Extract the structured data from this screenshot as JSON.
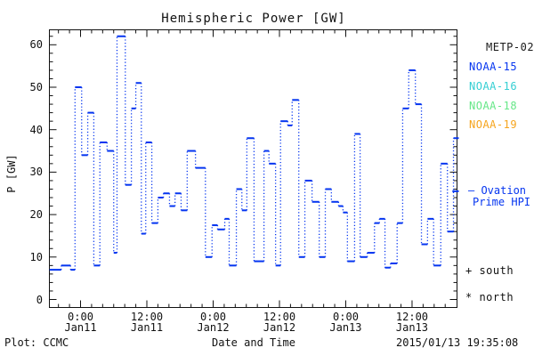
{
  "title": "Hemispheric Power [GW]",
  "y_axis": {
    "label": "P [GW]",
    "tick_values": [
      0,
      10,
      20,
      30,
      40,
      50,
      60
    ],
    "minor_step_gw": 2,
    "range_gw": [
      -1.75,
      63.7
    ]
  },
  "x_axis": {
    "label": "Date and Time",
    "major_ticks": [
      {
        "time": "0:00",
        "date": "Jan11",
        "hours": 0
      },
      {
        "time": "12:00",
        "date": "Jan11",
        "hours": 12
      },
      {
        "time": "0:00",
        "date": "Jan12",
        "hours": 24
      },
      {
        "time": "12:00",
        "date": "Jan12",
        "hours": 36
      },
      {
        "time": "0:00",
        "date": "Jan13",
        "hours": 48
      },
      {
        "time": "12:00",
        "date": "Jan13",
        "hours": 60
      }
    ],
    "minor_step_hours": 2,
    "range_hours": [
      -5.6,
      68.6
    ]
  },
  "legend": {
    "satellites": [
      {
        "name": "METP-02",
        "color": "#1a1a1a"
      },
      {
        "name": "NOAA-15",
        "color": "#0535f0"
      },
      {
        "name": "NOAA-16",
        "color": "#35cfd3"
      },
      {
        "name": "NOAA-18",
        "color": "#66e788"
      },
      {
        "name": "NOAA-19",
        "color": "#f6a51e"
      }
    ],
    "line": {
      "label_line1": "— Ovation",
      "label_line2": "Prime HPI",
      "color": "#0535f0"
    },
    "markers": {
      "south": "+ south",
      "north": "* north"
    }
  },
  "footer": {
    "left": "Plot: CCMC",
    "center_label": "Date and Time",
    "timestamp": "2015/01/13 19:35:08"
  },
  "chart_data": {
    "type": "line",
    "title": "Hemispheric Power [GW]",
    "xlabel": "Date and Time",
    "ylabel": "P [GW]",
    "series_name": "Ovation Prime HPI",
    "line_color": "#0535f0",
    "style": "horizontal plateau segments joined by dotted vertical connectors",
    "x_unit": "hours since 2015-01-11 00:00 UT",
    "xlim": [
      -5.6,
      68.6
    ],
    "ylim": [
      -1.75,
      63.7
    ],
    "segments_h_gw": [
      [
        -5.6,
        -3.5,
        7
      ],
      [
        -3.5,
        -1.8,
        8
      ],
      [
        -1.8,
        -1.0,
        7
      ],
      [
        -1.0,
        0.2,
        50
      ],
      [
        0.2,
        1.3,
        34
      ],
      [
        1.3,
        2.4,
        44
      ],
      [
        2.4,
        3.5,
        8
      ],
      [
        3.5,
        4.8,
        37
      ],
      [
        4.8,
        6.0,
        35
      ],
      [
        6.0,
        6.6,
        11
      ],
      [
        6.6,
        8.1,
        62
      ],
      [
        8.1,
        9.2,
        27
      ],
      [
        9.2,
        10.0,
        45
      ],
      [
        10.0,
        11.0,
        51
      ],
      [
        11.0,
        11.8,
        15.5
      ],
      [
        11.8,
        12.9,
        37
      ],
      [
        12.9,
        14.0,
        18
      ],
      [
        14.0,
        15.0,
        24
      ],
      [
        15.0,
        16.1,
        25
      ],
      [
        16.1,
        17.1,
        22
      ],
      [
        17.1,
        18.2,
        25
      ],
      [
        18.2,
        19.3,
        21
      ],
      [
        19.3,
        20.8,
        35
      ],
      [
        20.8,
        22.6,
        31
      ],
      [
        22.6,
        23.8,
        10
      ],
      [
        23.8,
        24.8,
        17.5
      ],
      [
        24.8,
        26.1,
        16.5
      ],
      [
        26.1,
        26.9,
        19
      ],
      [
        26.9,
        28.2,
        8
      ],
      [
        28.2,
        29.2,
        26
      ],
      [
        29.2,
        30.1,
        21
      ],
      [
        30.1,
        31.4,
        38
      ],
      [
        31.4,
        33.2,
        9
      ],
      [
        33.2,
        34.1,
        35
      ],
      [
        34.1,
        35.3,
        32
      ],
      [
        35.3,
        36.2,
        8
      ],
      [
        36.2,
        37.5,
        42
      ],
      [
        37.5,
        38.3,
        41
      ],
      [
        38.3,
        39.5,
        47
      ],
      [
        39.5,
        40.6,
        10
      ],
      [
        40.6,
        41.9,
        28
      ],
      [
        41.9,
        43.2,
        23
      ],
      [
        43.2,
        44.3,
        10
      ],
      [
        44.3,
        45.4,
        26
      ],
      [
        45.4,
        46.7,
        23
      ],
      [
        46.7,
        47.5,
        22
      ],
      [
        47.5,
        48.3,
        20.5
      ],
      [
        48.3,
        49.6,
        9
      ],
      [
        49.6,
        50.6,
        39
      ],
      [
        50.6,
        51.9,
        10
      ],
      [
        51.9,
        53.2,
        11
      ],
      [
        53.2,
        54.1,
        18
      ],
      [
        54.1,
        55.1,
        19
      ],
      [
        55.1,
        56.1,
        7.5
      ],
      [
        56.1,
        57.3,
        8.5
      ],
      [
        57.3,
        58.3,
        18
      ],
      [
        58.3,
        59.4,
        45
      ],
      [
        59.4,
        60.6,
        54
      ],
      [
        60.6,
        61.7,
        46
      ],
      [
        61.7,
        62.8,
        13
      ],
      [
        62.8,
        63.9,
        19
      ],
      [
        63.9,
        65.2,
        8
      ],
      [
        65.2,
        66.4,
        32
      ],
      [
        66.4,
        67.5,
        16
      ],
      [
        67.5,
        68.5,
        38
      ]
    ],
    "detached_segments_h_gw": [
      [
        67.3,
        68.7,
        25.5
      ]
    ]
  }
}
